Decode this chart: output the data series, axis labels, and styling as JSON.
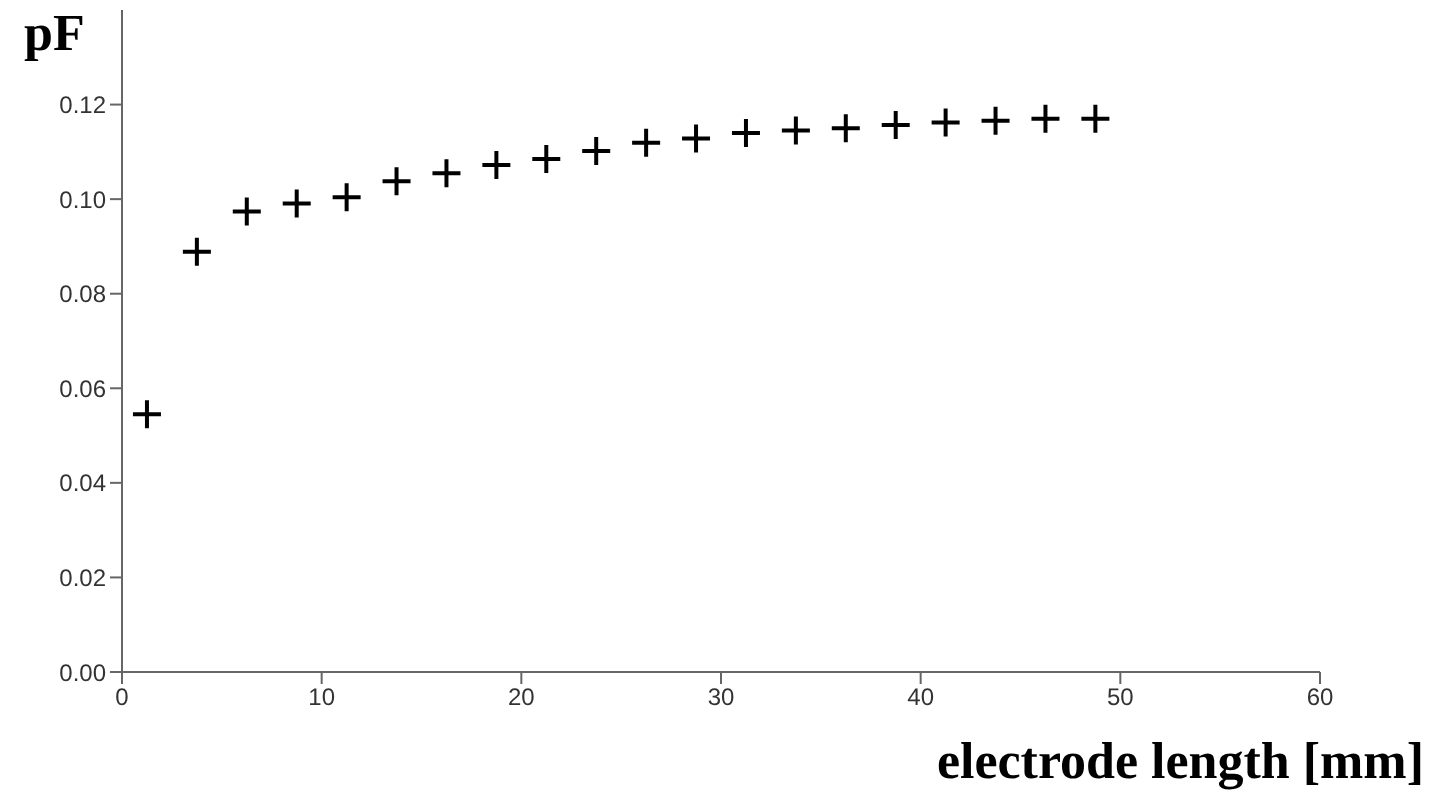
{
  "chart_data": {
    "type": "scatter",
    "ylabel": "pF",
    "xlabel": "electrode length [mm]",
    "x": [
      1.25,
      3.75,
      6.25,
      8.75,
      11.25,
      13.75,
      16.25,
      18.75,
      21.25,
      23.75,
      26.25,
      28.75,
      31.25,
      33.75,
      36.25,
      38.75,
      41.25,
      43.75,
      46.25,
      48.75
    ],
    "series": [
      {
        "color": "#000000",
        "values": [
          0.0545,
          0.0889,
          0.0974,
          0.0991,
          0.1004,
          0.1038,
          0.1055,
          0.1072,
          0.1085,
          0.1102,
          0.1119,
          0.1128,
          0.114,
          0.1145,
          0.115,
          0.1157,
          0.1162,
          0.1166,
          0.117,
          0.117
        ]
      }
    ],
    "xlim": [
      0,
      60
    ],
    "xticks": [
      0,
      10,
      20,
      30,
      40,
      50,
      60
    ],
    "ylim": [
      0,
      0.14
    ],
    "yticks": [
      {
        "value": 0,
        "label": "0.00"
      },
      {
        "value": 0.02,
        "label": "0.02"
      },
      {
        "value": 0.04,
        "label": "0.04"
      },
      {
        "value": 0.06,
        "label": "0.06"
      },
      {
        "value": 0.08,
        "label": "0.08"
      },
      {
        "value": 0.1,
        "label": "0.10"
      },
      {
        "value": 0.12,
        "label": "0.12"
      }
    ],
    "grid": false,
    "legend": false,
    "marker": "cross"
  }
}
